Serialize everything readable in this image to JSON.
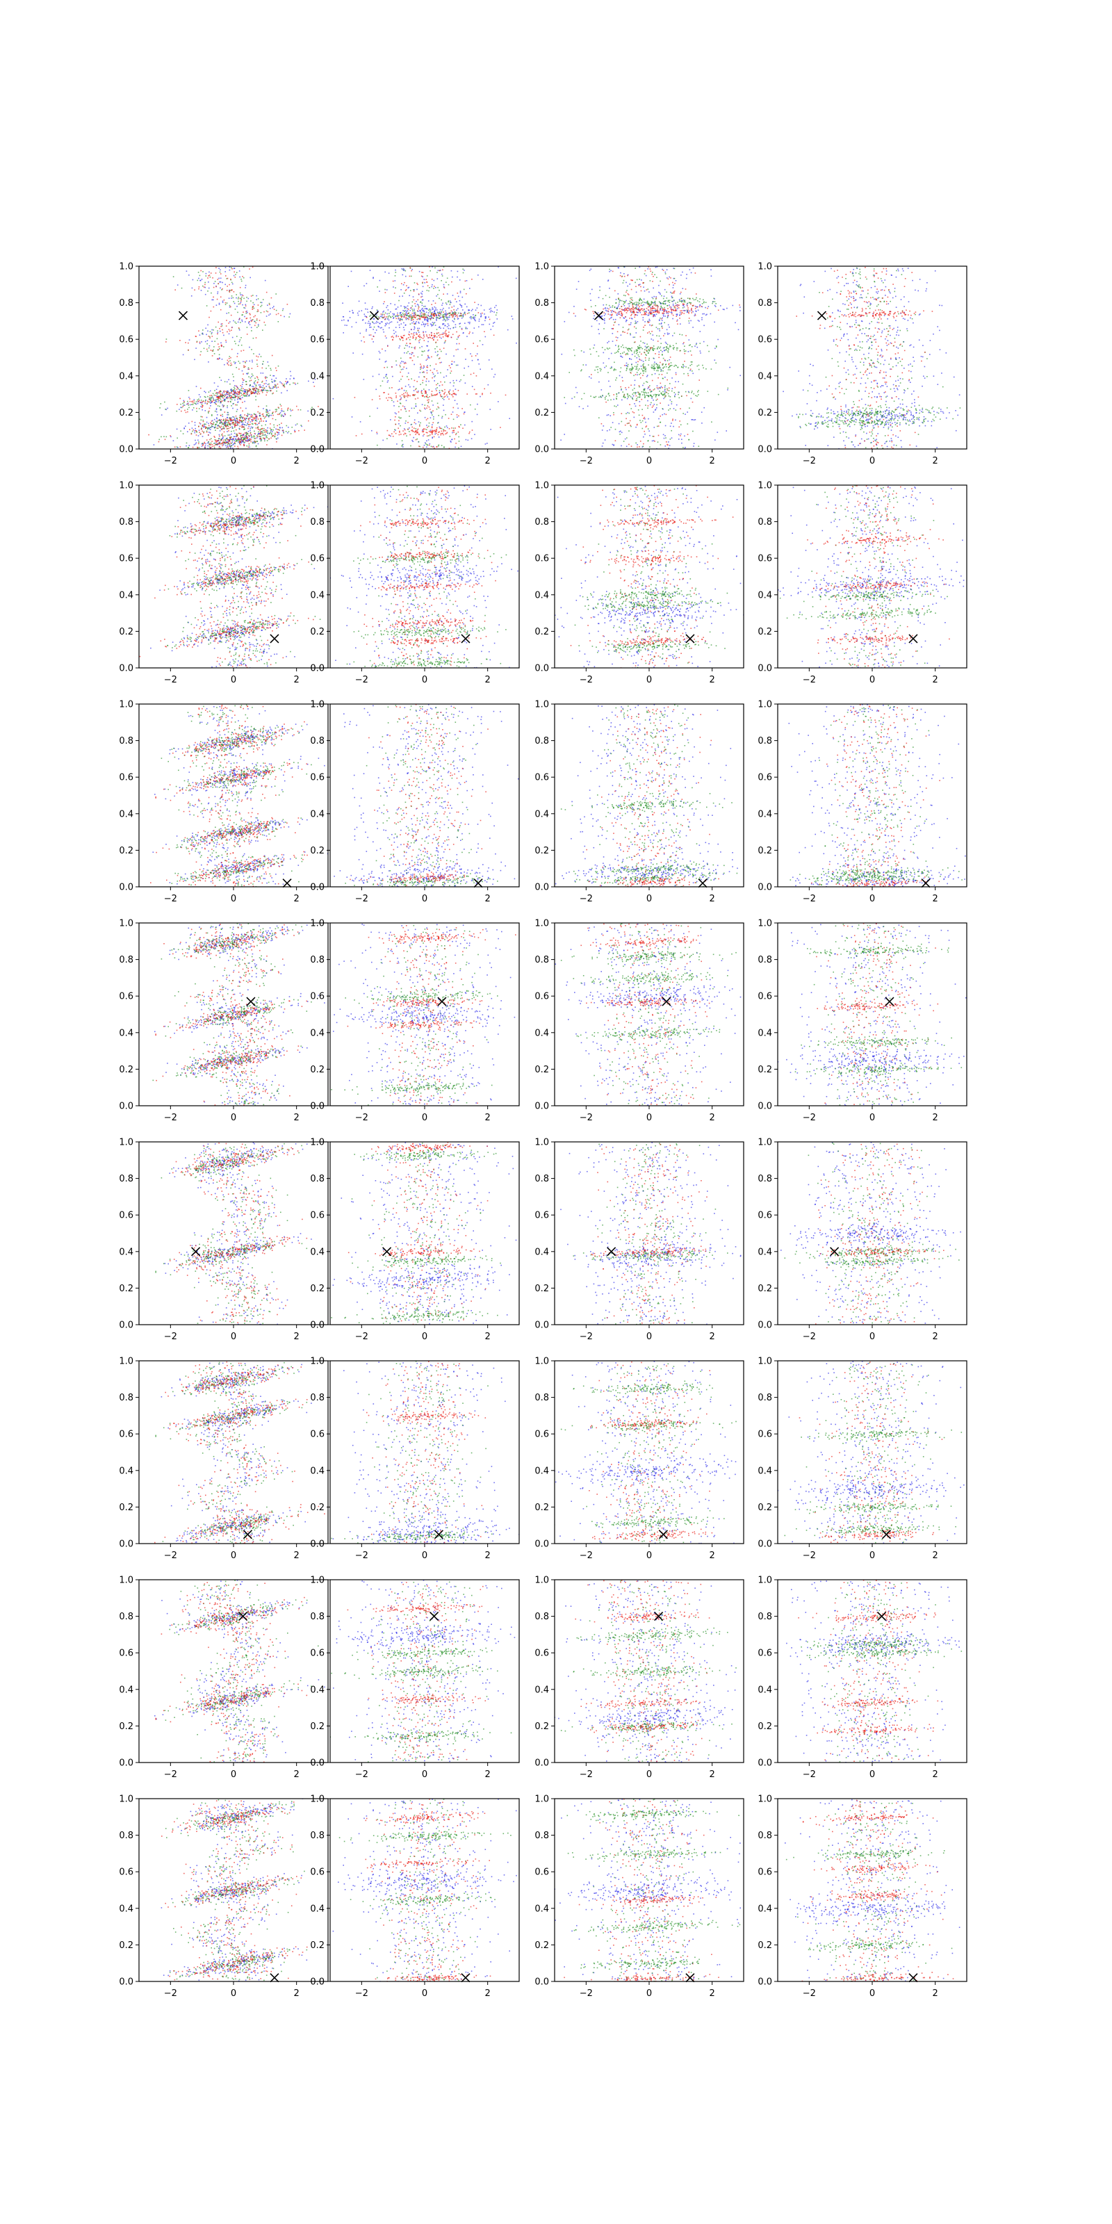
{
  "figure": {
    "type": "scatter-grid",
    "rows": 8,
    "cols": 4
  },
  "colors": {
    "series_red": "#e8140c",
    "series_green": "#1e8c1e",
    "series_blue": "#2626e8",
    "marker": "#000000",
    "axes": "#000000"
  },
  "chart_data": {
    "type": "scatter",
    "xlim": [
      -3,
      3
    ],
    "ylim": [
      0,
      1
    ],
    "x_ticks": [
      -2,
      0,
      2
    ],
    "y_ticks": [
      0.0,
      0.2,
      0.4,
      0.6,
      0.8,
      1.0
    ],
    "x_tick_labels": [
      "−2",
      "0",
      "2"
    ],
    "y_tick_labels": [
      "0.0",
      "0.2",
      "0.4",
      "0.6",
      "0.8",
      "1.0"
    ],
    "series_names": [
      "red",
      "green",
      "blue"
    ],
    "marker_symbol": "×",
    "row_markers": [
      {
        "x": -1.6,
        "y": 0.73
      },
      {
        "x": 1.3,
        "y": 0.16
      },
      {
        "x": 1.7,
        "y": 0.02
      },
      {
        "x": 0.55,
        "y": 0.57
      },
      {
        "x": -1.2,
        "y": 0.4
      },
      {
        "x": 0.45,
        "y": 0.05
      },
      {
        "x": 0.3,
        "y": 0.8
      },
      {
        "x": 1.3,
        "y": 0.02
      }
    ],
    "panels": [
      {
        "row": 1,
        "col": 1,
        "style": "zigzag",
        "bands": [
          0.05,
          0.15,
          0.3
        ],
        "marker": {
          "x": -1.6,
          "y": 0.73
        }
      },
      {
        "row": 1,
        "col": 2,
        "style": "bands",
        "bands_green": [
          0.73
        ],
        "bands_red": [
          0.1,
          0.3,
          0.62,
          0.73
        ],
        "bands_blue": [
          0.7,
          0.75
        ],
        "marker": {
          "x": -1.6,
          "y": 0.73
        }
      },
      {
        "row": 1,
        "col": 3,
        "style": "bands",
        "bands_green": [
          0.8,
          0.55,
          0.45,
          0.3
        ],
        "bands_red": [
          0.75,
          0.77
        ],
        "bands_blue": [
          0.75
        ],
        "marker": {
          "x": -1.6,
          "y": 0.73
        }
      },
      {
        "row": 1,
        "col": 4,
        "style": "bands",
        "bands_green": [
          0.15,
          0.2
        ],
        "bands_red": [
          0.74
        ],
        "bands_blue": [
          0.18
        ],
        "marker": {
          "x": -1.6,
          "y": 0.73
        }
      },
      {
        "row": 2,
        "col": 1,
        "style": "zigzag",
        "bands": [
          0.2,
          0.5,
          0.8
        ],
        "marker": {
          "x": 1.3,
          "y": 0.16
        }
      },
      {
        "row": 2,
        "col": 2,
        "style": "bands",
        "bands_green": [
          0.03,
          0.2,
          0.6
        ],
        "bands_red": [
          0.8,
          0.62,
          0.45,
          0.25,
          0.15
        ],
        "bands_blue": [
          0.5
        ],
        "marker": {
          "x": 1.3,
          "y": 0.16
        }
      },
      {
        "row": 2,
        "col": 3,
        "style": "bands",
        "bands_green": [
          0.12,
          0.35,
          0.4
        ],
        "bands_red": [
          0.15,
          0.6,
          0.8
        ],
        "bands_blue": [
          0.3
        ],
        "marker": {
          "x": 1.3,
          "y": 0.16
        }
      },
      {
        "row": 2,
        "col": 4,
        "style": "bands",
        "bands_green": [
          0.3,
          0.4
        ],
        "bands_red": [
          0.16,
          0.45,
          0.7
        ],
        "bands_blue": [
          0.45
        ],
        "marker": {
          "x": 1.3,
          "y": 0.16
        }
      },
      {
        "row": 3,
        "col": 1,
        "style": "zigzag",
        "bands": [
          0.1,
          0.3,
          0.6,
          0.8
        ],
        "marker": {
          "x": 1.7,
          "y": 0.02
        }
      },
      {
        "row": 3,
        "col": 2,
        "style": "bands",
        "bands_green": [
          0.03
        ],
        "bands_red": [
          0.05
        ],
        "bands_blue": [
          0.06
        ],
        "marker": {
          "x": 1.7,
          "y": 0.02
        }
      },
      {
        "row": 3,
        "col": 3,
        "style": "bands",
        "bands_green": [
          0.05,
          0.1,
          0.45
        ],
        "bands_red": [
          0.03
        ],
        "bands_blue": [
          0.08
        ],
        "marker": {
          "x": 1.7,
          "y": 0.02
        }
      },
      {
        "row": 3,
        "col": 4,
        "style": "bands",
        "bands_green": [
          0.05,
          0.08
        ],
        "bands_red": [
          0.02
        ],
        "bands_blue": [
          0.04
        ],
        "marker": {
          "x": 1.7,
          "y": 0.02
        }
      },
      {
        "row": 4,
        "col": 1,
        "style": "zigzag",
        "bands": [
          0.25,
          0.5,
          0.9
        ],
        "marker": {
          "x": 0.55,
          "y": 0.57
        }
      },
      {
        "row": 4,
        "col": 2,
        "style": "bands",
        "bands_green": [
          0.6,
          0.1
        ],
        "bands_red": [
          0.92,
          0.57,
          0.45
        ],
        "bands_blue": [
          0.5
        ],
        "marker": {
          "x": 0.55,
          "y": 0.57
        }
      },
      {
        "row": 4,
        "col": 3,
        "style": "bands",
        "bands_green": [
          0.82,
          0.7,
          0.4
        ],
        "bands_red": [
          0.9,
          0.57
        ],
        "bands_blue": [
          0.6
        ],
        "marker": {
          "x": 0.55,
          "y": 0.57
        }
      },
      {
        "row": 4,
        "col": 4,
        "style": "bands",
        "bands_green": [
          0.2,
          0.35,
          0.85
        ],
        "bands_red": [
          0.55
        ],
        "bands_blue": [
          0.25
        ],
        "marker": {
          "x": 0.55,
          "y": 0.57
        }
      },
      {
        "row": 5,
        "col": 1,
        "style": "zigzag",
        "bands": [
          0.4,
          0.9
        ],
        "marker": {
          "x": -1.2,
          "y": 0.4
        }
      },
      {
        "row": 5,
        "col": 2,
        "style": "bands",
        "bands_green": [
          0.05,
          0.35,
          0.93
        ],
        "bands_red": [
          0.4,
          0.97
        ],
        "bands_blue": [
          0.25
        ],
        "marker": {
          "x": -1.2,
          "y": 0.4
        }
      },
      {
        "row": 5,
        "col": 3,
        "style": "bands",
        "bands_green": [
          0.38
        ],
        "bands_red": [
          0.4
        ],
        "bands_blue": [
          0.38
        ],
        "marker": {
          "x": -1.2,
          "y": 0.4
        }
      },
      {
        "row": 5,
        "col": 4,
        "style": "bands",
        "bands_green": [
          0.35,
          0.4
        ],
        "bands_red": [
          0.4
        ],
        "bands_blue": [
          0.5
        ],
        "marker": {
          "x": -1.2,
          "y": 0.4
        }
      },
      {
        "row": 6,
        "col": 1,
        "style": "zigzag",
        "bands": [
          0.1,
          0.7,
          0.9
        ],
        "marker": {
          "x": 0.45,
          "y": 0.05
        }
      },
      {
        "row": 6,
        "col": 2,
        "style": "bands",
        "bands_green": [
          0.04
        ],
        "bands_red": [
          0.7
        ],
        "bands_blue": [
          0.06
        ],
        "marker": {
          "x": 0.45,
          "y": 0.05
        }
      },
      {
        "row": 6,
        "col": 3,
        "style": "bands",
        "bands_green": [
          0.12,
          0.65,
          0.85
        ],
        "bands_red": [
          0.05,
          0.66
        ],
        "bands_blue": [
          0.4
        ],
        "marker": {
          "x": 0.45,
          "y": 0.05
        }
      },
      {
        "row": 6,
        "col": 4,
        "style": "bands",
        "bands_green": [
          0.08,
          0.2,
          0.6
        ],
        "bands_red": [
          0.05
        ],
        "bands_blue": [
          0.3
        ],
        "marker": {
          "x": 0.45,
          "y": 0.05
        }
      },
      {
        "row": 7,
        "col": 1,
        "style": "zigzag",
        "bands": [
          0.35,
          0.8
        ],
        "marker": {
          "x": 0.3,
          "y": 0.8
        }
      },
      {
        "row": 7,
        "col": 2,
        "style": "bands",
        "bands_green": [
          0.15,
          0.5,
          0.6
        ],
        "bands_red": [
          0.35,
          0.85
        ],
        "bands_blue": [
          0.7
        ],
        "marker": {
          "x": 0.3,
          "y": 0.8
        }
      },
      {
        "row": 7,
        "col": 3,
        "style": "bands",
        "bands_green": [
          0.2,
          0.5,
          0.7
        ],
        "bands_red": [
          0.2,
          0.33,
          0.8
        ],
        "bands_blue": [
          0.25
        ],
        "marker": {
          "x": 0.3,
          "y": 0.8
        }
      },
      {
        "row": 7,
        "col": 4,
        "style": "bands",
        "bands_green": [
          0.6,
          0.65
        ],
        "bands_red": [
          0.18,
          0.33,
          0.8
        ],
        "bands_blue": [
          0.65
        ],
        "marker": {
          "x": 0.3,
          "y": 0.8
        }
      },
      {
        "row": 8,
        "col": 1,
        "style": "zigzag",
        "bands": [
          0.1,
          0.5,
          0.9
        ],
        "marker": {
          "x": 1.3,
          "y": 0.02
        }
      },
      {
        "row": 8,
        "col": 2,
        "style": "bands",
        "bands_green": [
          0.45,
          0.8
        ],
        "bands_red": [
          0.02,
          0.65,
          0.9
        ],
        "bands_blue": [
          0.55
        ],
        "marker": {
          "x": 1.3,
          "y": 0.02
        }
      },
      {
        "row": 8,
        "col": 3,
        "style": "bands",
        "bands_green": [
          0.1,
          0.3,
          0.7,
          0.92
        ],
        "bands_red": [
          0.02,
          0.45
        ],
        "bands_blue": [
          0.5
        ],
        "marker": {
          "x": 1.3,
          "y": 0.02
        }
      },
      {
        "row": 8,
        "col": 4,
        "style": "bands",
        "bands_green": [
          0.2,
          0.7
        ],
        "bands_red": [
          0.02,
          0.47,
          0.62,
          0.9
        ],
        "bands_blue": [
          0.4
        ],
        "marker": {
          "x": 1.3,
          "y": 0.02
        }
      }
    ]
  }
}
